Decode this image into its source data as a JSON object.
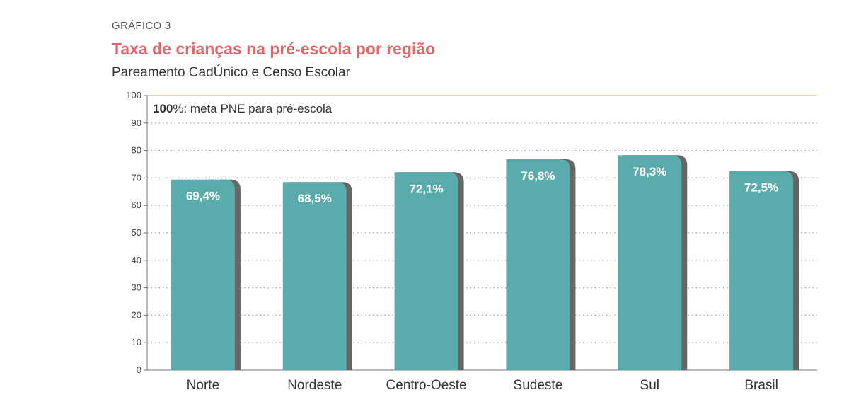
{
  "header": {
    "label": "GRÁFICO 3",
    "title": "Taxa de crianças na pré-escola por região",
    "subtitle": "Pareamento CadÚnico e Censo Escolar"
  },
  "colors": {
    "bar": "#5aabab",
    "bar_shadow": "#666666",
    "title": "#e0676a",
    "target_line": "#f2cc55",
    "grid": "#9a9a9a"
  },
  "chart_data": {
    "type": "bar",
    "title": "Taxa de crianças na pré-escola por região",
    "subtitle": "Pareamento CadÚnico e Censo Escolar",
    "categories": [
      "Norte",
      "Nordeste",
      "Centro-Oeste",
      "Sudeste",
      "Sul",
      "Brasil"
    ],
    "values": [
      69.4,
      68.5,
      72.1,
      76.8,
      78.3,
      72.5
    ],
    "value_labels": [
      "69,4%",
      "68,5%",
      "72,1%",
      "76,8%",
      "78,3%",
      "72,5%"
    ],
    "ylim": [
      0,
      100
    ],
    "yticks": [
      0,
      10,
      20,
      30,
      40,
      50,
      60,
      70,
      80,
      90,
      100
    ],
    "grid": true,
    "xlabel": "",
    "ylabel": "",
    "annotation": {
      "value": 100,
      "bold_text": "100",
      "text": "%: meta PNE para pré-escola"
    }
  }
}
